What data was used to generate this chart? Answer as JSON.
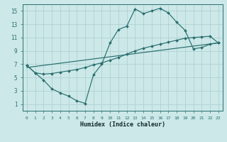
{
  "xlabel": "Humidex (Indice chaleur)",
  "bg_color": "#cce8e8",
  "grid_color": "#aacece",
  "line_color": "#2a6e6e",
  "xlim": [
    -0.5,
    23.5
  ],
  "ylim": [
    0,
    16
  ],
  "xticks": [
    0,
    1,
    2,
    3,
    4,
    5,
    6,
    7,
    8,
    9,
    10,
    11,
    12,
    13,
    14,
    15,
    16,
    17,
    18,
    19,
    20,
    21,
    22,
    23
  ],
  "yticks": [
    1,
    3,
    5,
    7,
    9,
    11,
    13,
    15
  ],
  "line1_x": [
    0,
    1,
    2,
    3,
    4,
    5,
    6,
    7,
    8,
    9,
    10,
    11,
    12,
    13,
    14,
    15,
    16,
    17,
    18,
    19,
    20,
    21,
    22,
    23
  ],
  "line1_y": [
    6.8,
    5.7,
    4.6,
    3.3,
    2.7,
    2.2,
    1.5,
    1.1,
    5.4,
    7.0,
    10.2,
    12.2,
    12.7,
    15.3,
    14.6,
    15.0,
    15.4,
    14.7,
    13.3,
    12.1,
    9.3,
    9.5,
    10.0,
    10.2
  ],
  "line2_x": [
    0,
    1,
    2,
    3,
    4,
    5,
    6,
    7,
    8,
    9,
    10,
    11,
    12,
    13,
    14,
    15,
    16,
    17,
    18,
    19,
    20,
    21,
    22,
    23
  ],
  "line2_y": [
    6.8,
    5.7,
    5.5,
    5.6,
    5.8,
    6.0,
    6.2,
    6.5,
    6.9,
    7.2,
    7.6,
    8.0,
    8.5,
    9.0,
    9.4,
    9.7,
    10.0,
    10.3,
    10.6,
    10.9,
    11.0,
    11.1,
    11.2,
    10.2
  ],
  "line3_x": [
    0,
    23
  ],
  "line3_y": [
    6.5,
    10.2
  ],
  "marker_style": "D",
  "marker_size": 2.0,
  "line_width": 0.85,
  "xlabel_fontsize": 6.0,
  "tick_fontsize_x": 4.5,
  "tick_fontsize_y": 5.5
}
